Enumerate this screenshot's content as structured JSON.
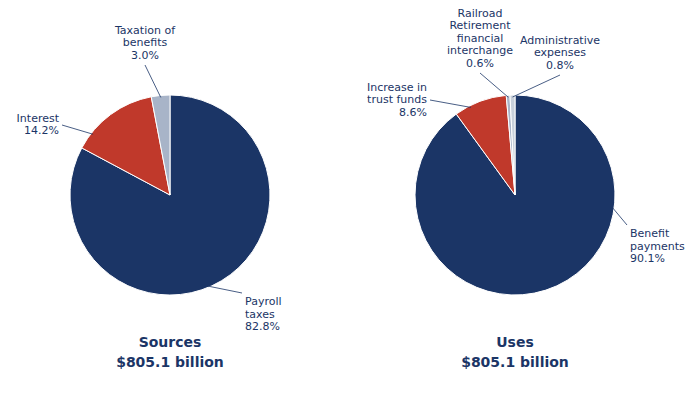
{
  "chart_data": [
    {
      "type": "pie",
      "title": "Sources",
      "subtitle": "$805.1 billion",
      "categories": [
        "Payroll taxes",
        "Interest",
        "Taxation of benefits"
      ],
      "values": [
        82.8,
        14.2,
        3.0
      ],
      "value_labels": [
        "82.8%",
        "14.2%",
        "3.0%"
      ],
      "colors": [
        "#1b3566",
        "#c0392b",
        "#a8b4c8"
      ],
      "data_labels": true
    },
    {
      "type": "pie",
      "title": "Uses",
      "subtitle": "$805.1 billion",
      "categories": [
        "Benefit payments",
        "Increase in trust funds",
        "Railroad Retirement financial interchange",
        "Administrative expenses"
      ],
      "values": [
        90.1,
        8.6,
        0.6,
        0.8
      ],
      "value_labels": [
        "90.1%",
        "8.6%",
        "0.6%",
        "0.8%"
      ],
      "colors": [
        "#1b3566",
        "#c0392b",
        "#a8b4c8",
        "#c8d0da"
      ],
      "data_labels": true
    }
  ]
}
